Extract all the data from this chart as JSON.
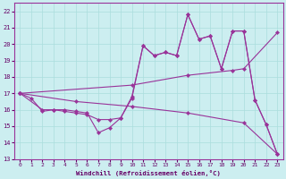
{
  "xlabel": "Windchill (Refroidissement éolien,°C)",
  "background_color": "#cceef0",
  "grid_color": "#aadddd",
  "line_color": "#993399",
  "xlim": [
    -0.5,
    23.5
  ],
  "ylim": [
    13,
    22.5
  ],
  "yticks": [
    13,
    14,
    15,
    16,
    17,
    18,
    19,
    20,
    21,
    22
  ],
  "xticks": [
    0,
    1,
    2,
    3,
    4,
    5,
    6,
    7,
    8,
    9,
    10,
    11,
    12,
    13,
    14,
    15,
    16,
    17,
    18,
    19,
    20,
    21,
    22,
    23
  ],
  "line1_x": [
    0,
    1,
    2,
    3,
    4,
    5,
    6,
    7,
    8,
    9,
    10,
    11,
    12,
    13,
    14,
    15,
    16,
    17,
    18,
    19,
    20,
    21,
    22,
    23
  ],
  "line1_y": [
    17.0,
    16.7,
    15.9,
    16.0,
    16.0,
    15.9,
    15.8,
    14.6,
    14.9,
    15.5,
    16.7,
    19.9,
    19.3,
    19.5,
    19.3,
    21.8,
    20.3,
    20.5,
    18.5,
    20.8,
    20.8,
    16.6,
    15.1,
    13.3
  ],
  "line2_x": [
    0,
    10,
    15,
    19,
    20,
    23
  ],
  "line2_y": [
    17.0,
    17.5,
    18.1,
    18.4,
    18.5,
    20.7
  ],
  "line3_x": [
    0,
    5,
    10,
    15,
    20,
    23
  ],
  "line3_y": [
    17.0,
    16.5,
    16.2,
    15.8,
    15.2,
    13.3
  ],
  "line4_x": [
    0,
    2,
    3,
    4,
    5,
    6,
    7,
    8,
    9,
    10,
    11,
    12,
    13,
    14,
    15,
    16,
    17,
    18,
    19,
    20,
    21,
    22,
    23
  ],
  "line4_y": [
    17.0,
    16.0,
    16.0,
    15.9,
    15.8,
    15.7,
    15.4,
    15.4,
    15.5,
    16.8,
    19.9,
    19.3,
    19.5,
    19.3,
    21.8,
    20.3,
    20.5,
    18.5,
    20.8,
    20.8,
    16.6,
    15.1,
    13.3
  ]
}
